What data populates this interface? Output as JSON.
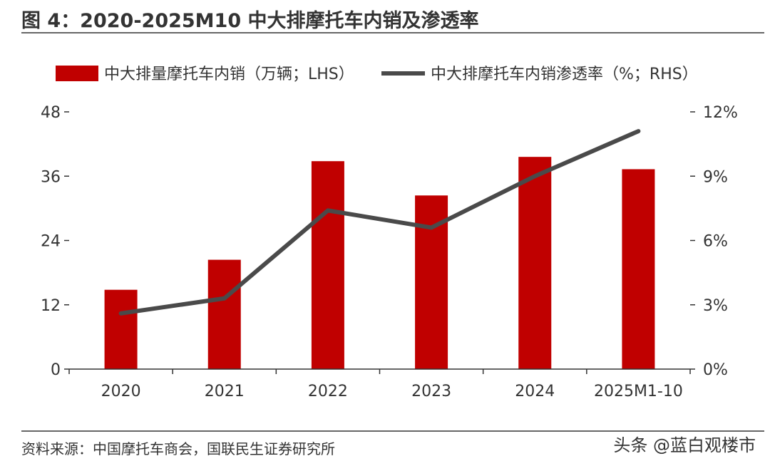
{
  "chart_data": {
    "type": "bar",
    "title": "图 4：2020-2025M10 中大排摩托车内销及渗透率",
    "categories": [
      "2020",
      "2021",
      "2022",
      "2023",
      "2024",
      "2025M1-10"
    ],
    "series": [
      {
        "name": "中大排量摩托车内销（万辆；LHS）",
        "type": "bar",
        "axis": "left",
        "color": "#c00000",
        "values": [
          14.8,
          20.4,
          38.8,
          32.4,
          39.6,
          37.3
        ]
      },
      {
        "name": "中大排摩托车内销渗透率（%；RHS）",
        "type": "line",
        "axis": "right",
        "color": "#4a4a4a",
        "values": [
          2.6,
          3.3,
          7.4,
          6.6,
          9.0,
          11.1
        ]
      }
    ],
    "y_left": {
      "min": 0,
      "max": 48,
      "ticks": [
        "0",
        "12",
        "24",
        "36",
        "48"
      ]
    },
    "y_right": {
      "min": 0,
      "max": 12,
      "ticks": [
        "0%",
        "3%",
        "6%",
        "9%",
        "12%"
      ]
    },
    "source": "资料来源：中国摩托车商会，国联民生证券研究所",
    "watermark": "头条 @蓝白观楼市"
  }
}
